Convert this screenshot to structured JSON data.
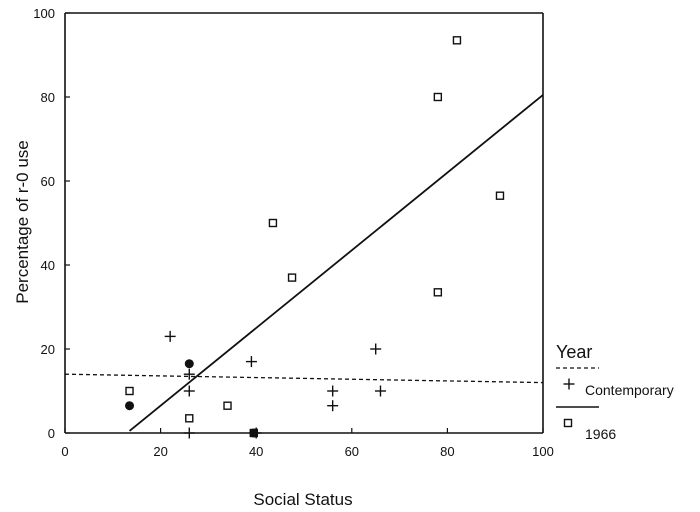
{
  "chart_data": {
    "type": "scatter",
    "xlabel": "Social Status",
    "ylabel": "Percentage of r-0 use",
    "xlim": [
      0,
      100
    ],
    "ylim": [
      0,
      100
    ],
    "x_ticks": [
      0,
      20,
      40,
      60,
      80,
      100
    ],
    "y_ticks": [
      0,
      20,
      40,
      60,
      80,
      100
    ],
    "grid": false,
    "legend": {
      "title": "Year",
      "placement": "bottom-right outside",
      "entries": [
        {
          "label": "Contemporary",
          "marker": "plus",
          "line": "dashed"
        },
        {
          "label": "1966",
          "marker": "square",
          "line": "solid"
        }
      ]
    },
    "series": [
      {
        "name": "Contemporary",
        "marker": "plus",
        "points": [
          [
            22,
            23
          ],
          [
            26,
            10
          ],
          [
            26,
            14
          ],
          [
            39,
            17
          ],
          [
            56,
            10
          ],
          [
            56,
            6.5
          ],
          [
            65,
            20
          ],
          [
            66,
            10
          ],
          [
            26,
            0
          ],
          [
            40,
            0
          ]
        ],
        "fit_line": {
          "style": "dashed",
          "from": [
            0,
            14
          ],
          "to": [
            100,
            12
          ]
        }
      },
      {
        "name": "1966",
        "marker": "square",
        "points": [
          [
            13.5,
            10
          ],
          [
            26,
            3.5
          ],
          [
            34,
            6.5
          ],
          [
            43.5,
            50
          ],
          [
            47.5,
            37
          ],
          [
            78,
            80
          ],
          [
            78,
            33.5
          ],
          [
            82,
            93.5
          ],
          [
            91,
            56.5
          ],
          [
            39.5,
            0
          ]
        ],
        "fit_line": {
          "style": "solid",
          "from": [
            13.5,
            0.5
          ],
          "to": [
            100,
            80.5
          ]
        }
      },
      {
        "marker": "filled-dot",
        "points": [
          [
            13.5,
            6.5
          ],
          [
            26,
            16.5
          ],
          [
            39.5,
            0
          ]
        ]
      }
    ],
    "colors": {
      "ink": "#111111",
      "background": "#ffffff"
    }
  }
}
